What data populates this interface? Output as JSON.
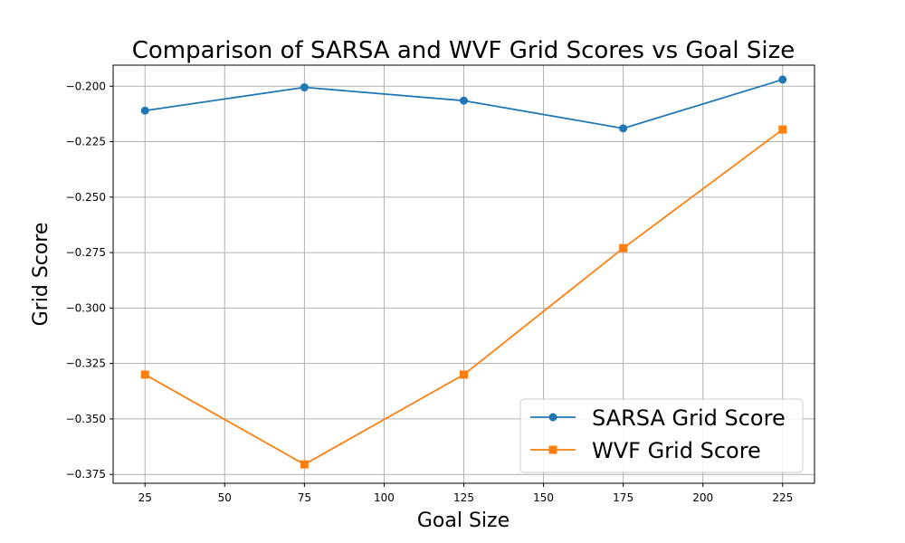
{
  "chart_data": {
    "type": "line",
    "title": "Comparison of SARSA and WVF Grid Scores vs Goal Size",
    "xlabel": "Goal Size",
    "ylabel": "Grid Score",
    "x": [
      25,
      75,
      125,
      175,
      225
    ],
    "xticks": [
      25,
      50,
      75,
      100,
      125,
      150,
      175,
      200,
      225
    ],
    "yticks": [
      -0.2,
      -0.225,
      -0.25,
      -0.275,
      -0.3,
      -0.325,
      -0.35,
      -0.375
    ],
    "ytick_labels": [
      "−0.200",
      "−0.225",
      "−0.250",
      "−0.275",
      "−0.300",
      "−0.325",
      "−0.350",
      "−0.375"
    ],
    "xlim": [
      15,
      235
    ],
    "ylim": [
      -0.379,
      -0.1905
    ],
    "grid": true,
    "legend_position": "lower-right",
    "series": [
      {
        "name": "SARSA Grid Score",
        "color": "#1f77b4",
        "marker": "circle",
        "values": [
          -0.211,
          -0.2005,
          -0.2065,
          -0.219,
          -0.197
        ]
      },
      {
        "name": "WVF Grid Score",
        "color": "#ff7f0e",
        "marker": "square",
        "values": [
          -0.33,
          -0.3705,
          -0.33,
          -0.273,
          -0.2195
        ]
      }
    ]
  }
}
